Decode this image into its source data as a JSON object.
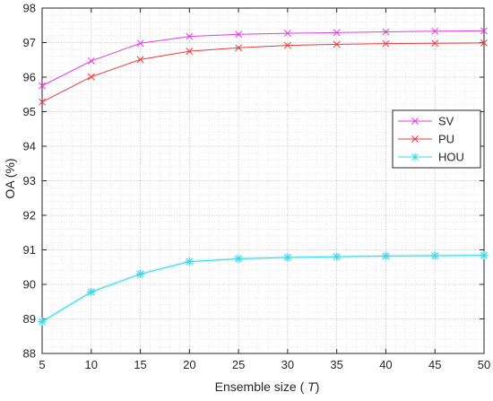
{
  "chart_data": {
    "type": "line",
    "title": "",
    "xlabel": "Ensemble size (",
    "xlabel_var": "T",
    "xlabel_suffix": ")",
    "ylabel": "OA (%)",
    "x": [
      5,
      10,
      15,
      20,
      25,
      30,
      35,
      40,
      45,
      50
    ],
    "xticks": [
      "5",
      "10",
      "15",
      "20",
      "25",
      "30",
      "35",
      "40",
      "45",
      "50"
    ],
    "yticks": [
      "88",
      "89",
      "90",
      "91",
      "92",
      "93",
      "94",
      "95",
      "96",
      "97",
      "98"
    ],
    "xlim": [
      5,
      50
    ],
    "ylim": [
      88,
      98
    ],
    "grid": true,
    "grid_minor": true,
    "legend_position": "right",
    "series": [
      {
        "name": "SV",
        "color": "#e639e6",
        "marker": "x",
        "values": [
          95.75,
          96.47,
          96.98,
          97.18,
          97.24,
          97.27,
          97.29,
          97.31,
          97.33,
          97.34
        ]
      },
      {
        "name": "PU",
        "color": "#e63c3c",
        "marker": "x",
        "values": [
          95.28,
          96.01,
          96.51,
          96.75,
          96.85,
          96.92,
          96.95,
          96.97,
          96.98,
          96.99
        ]
      },
      {
        "name": "HOU",
        "color": "#3ad6e6",
        "marker": "asterisk",
        "values": [
          88.92,
          89.78,
          90.3,
          90.66,
          90.74,
          90.78,
          90.8,
          90.82,
          90.83,
          90.84
        ]
      }
    ]
  }
}
